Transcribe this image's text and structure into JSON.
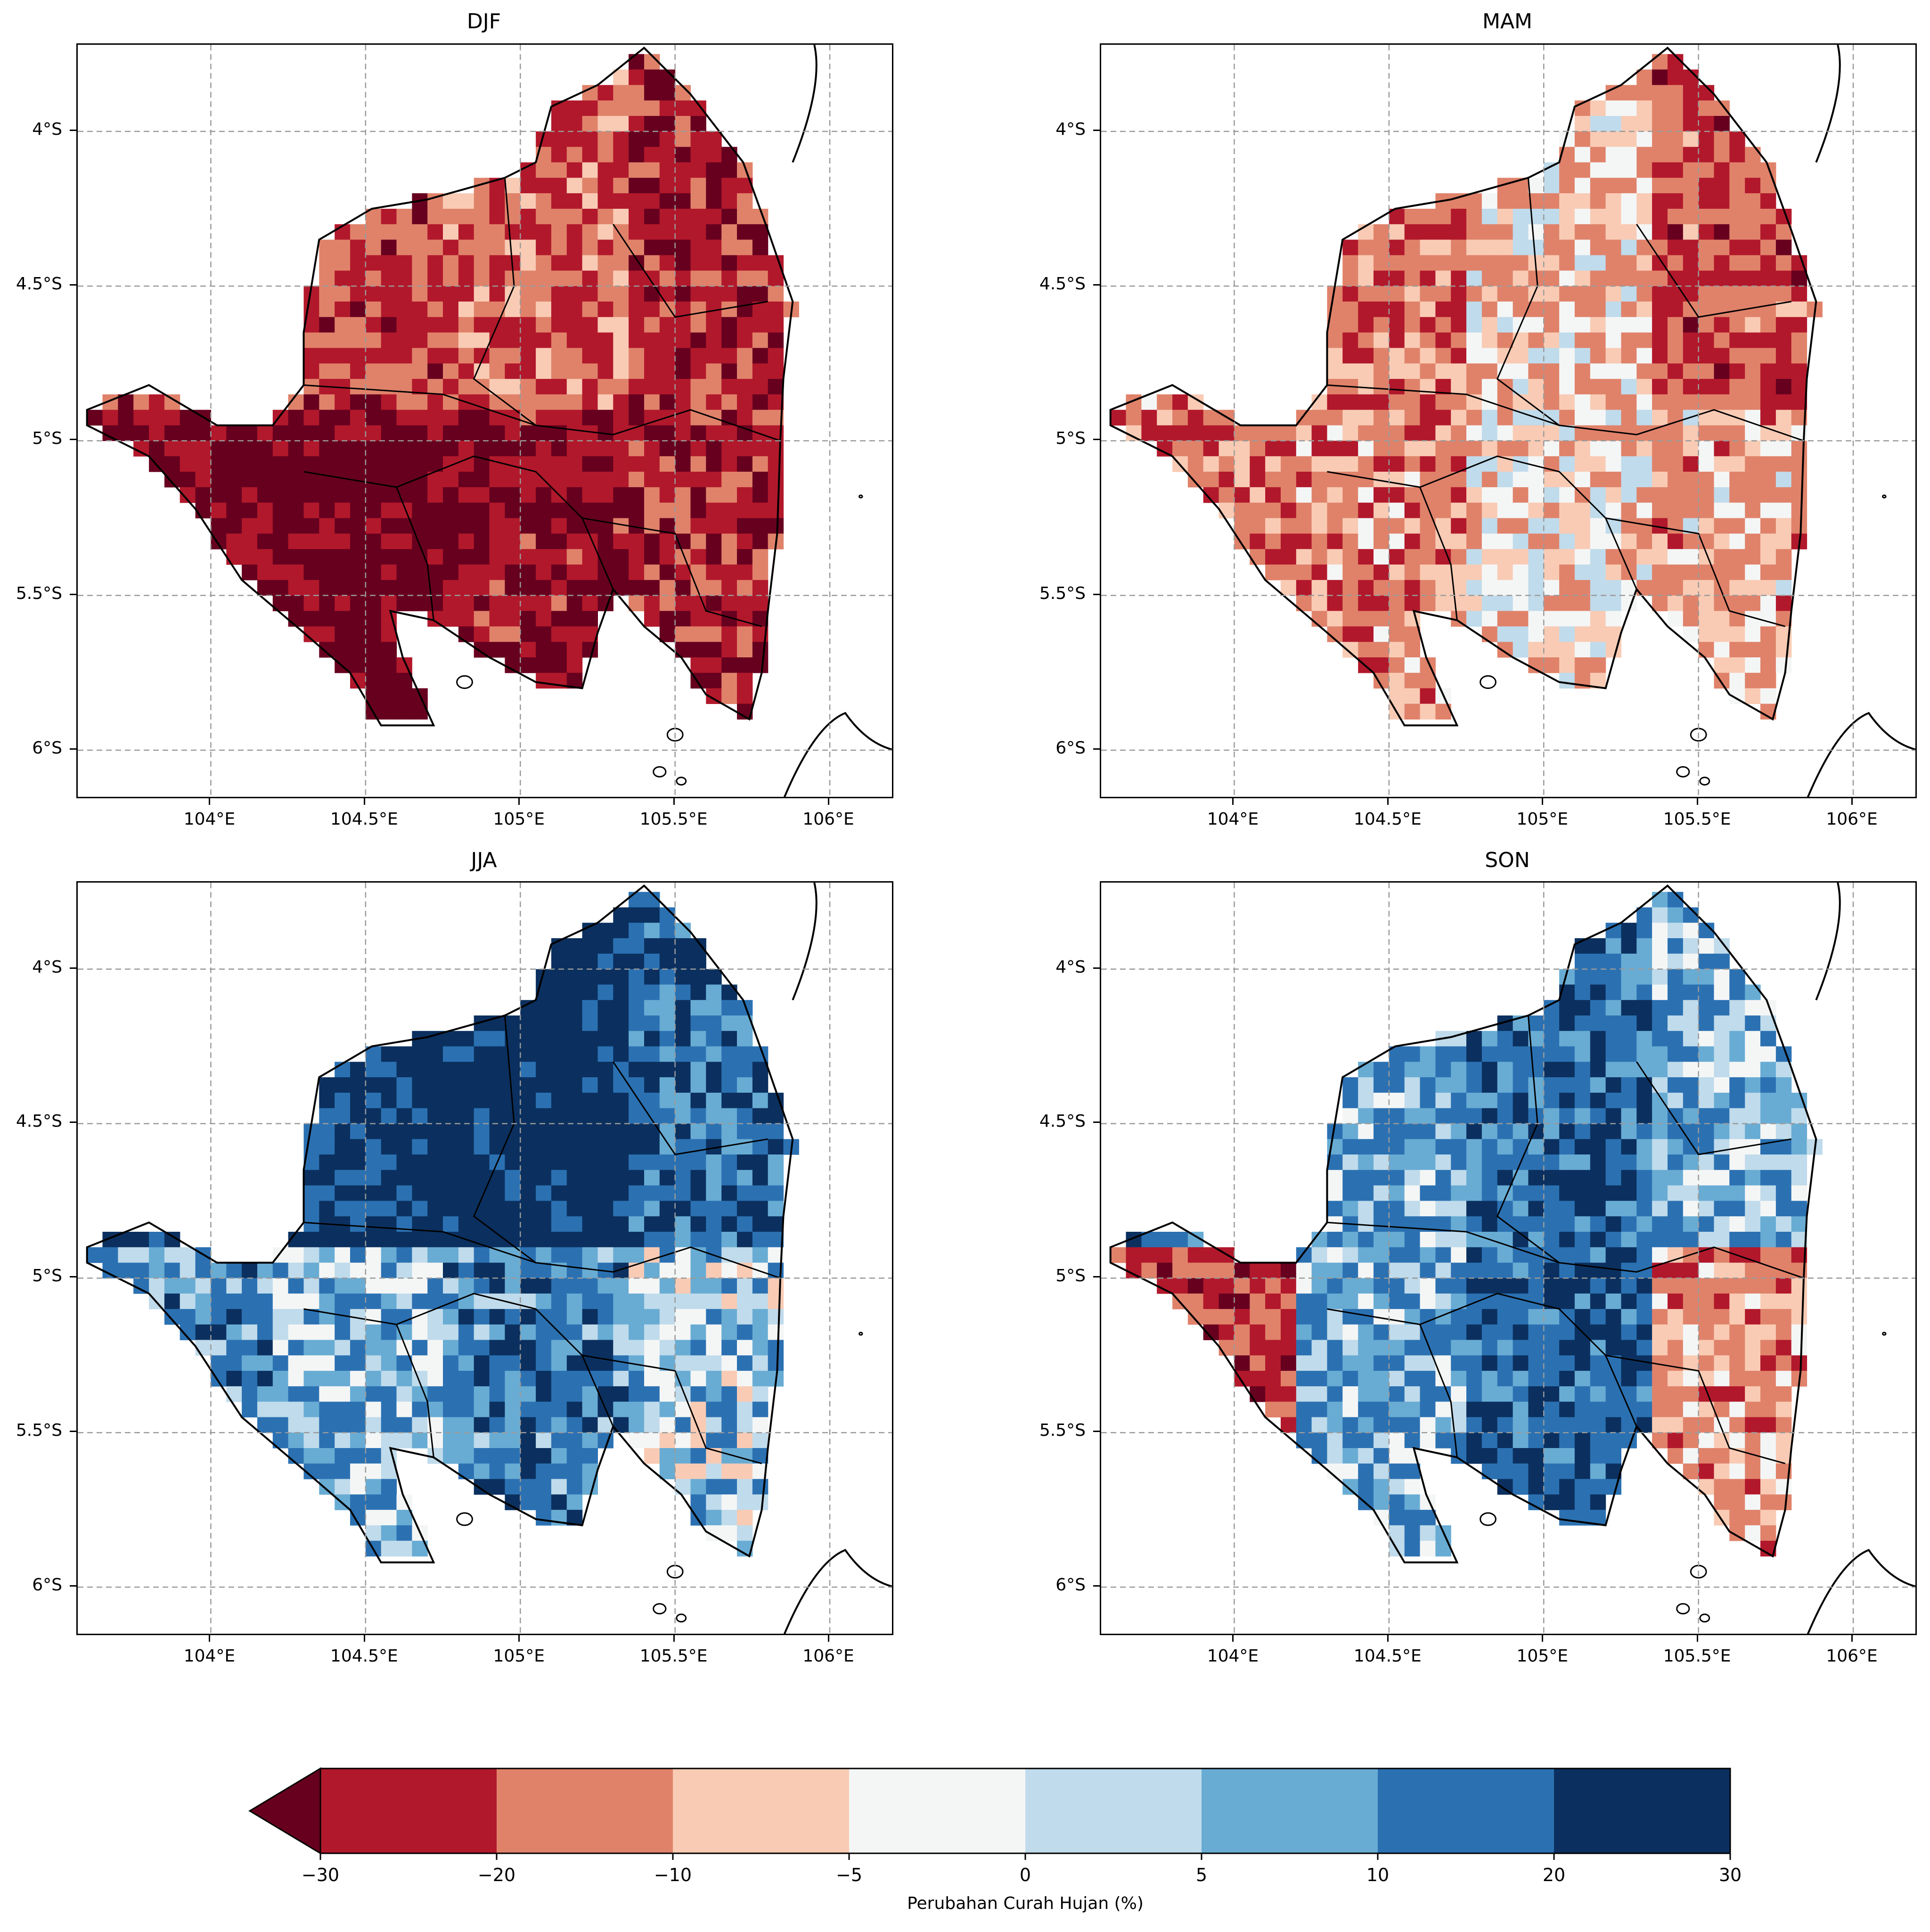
{
  "panels": [
    {
      "id": "djf",
      "title": "DJF",
      "field": [
        -28,
        -22,
        -18,
        -25,
        -32,
        -36,
        -30,
        -26
      ]
    },
    {
      "id": "mam",
      "title": "MAM",
      "field": [
        -12,
        -16,
        -8,
        -20,
        -18,
        -14,
        -6,
        -10
      ]
    },
    {
      "id": "jja",
      "title": "JJA",
      "field": [
        26,
        24,
        28,
        16,
        12,
        6,
        14,
        4
      ]
    },
    {
      "id": "son",
      "title": "SON",
      "field": [
        12,
        9,
        16,
        6,
        -22,
        8,
        18,
        -12
      ]
    }
  ],
  "axes": {
    "lat_ticks": [
      "4°S",
      "4.5°S",
      "5°S",
      "5.5°S",
      "6°S"
    ],
    "lon_ticks": [
      "104°E",
      "104.5°E",
      "105°E",
      "105.5°E",
      "106°E"
    ],
    "lat_values": [
      -4,
      -4.5,
      -5,
      -5.5,
      -6
    ],
    "lon_values": [
      104,
      104.5,
      105,
      105.5,
      106
    ],
    "lon_range": [
      103.57,
      106.21
    ],
    "lat_range": [
      -6.16,
      -3.72
    ],
    "grid": true,
    "grid_style": "dashed"
  },
  "colorbar": {
    "label": "Perubahan Curah Hujan (%)",
    "ticks": [
      "−30",
      "−20",
      "−10",
      "−5",
      "0",
      "5",
      "10",
      "20",
      "30"
    ],
    "bounds": [
      -30,
      -20,
      -10,
      -5,
      0,
      5,
      10,
      20,
      30
    ],
    "colors": [
      "#b2182b",
      "#e0826a",
      "#f9cbb4",
      "#f4f6f6",
      "#c0dbeb",
      "#68acd4",
      "#2b71b2",
      "#0b305f"
    ],
    "extend_color": "#67001f",
    "extend": "min"
  }
}
